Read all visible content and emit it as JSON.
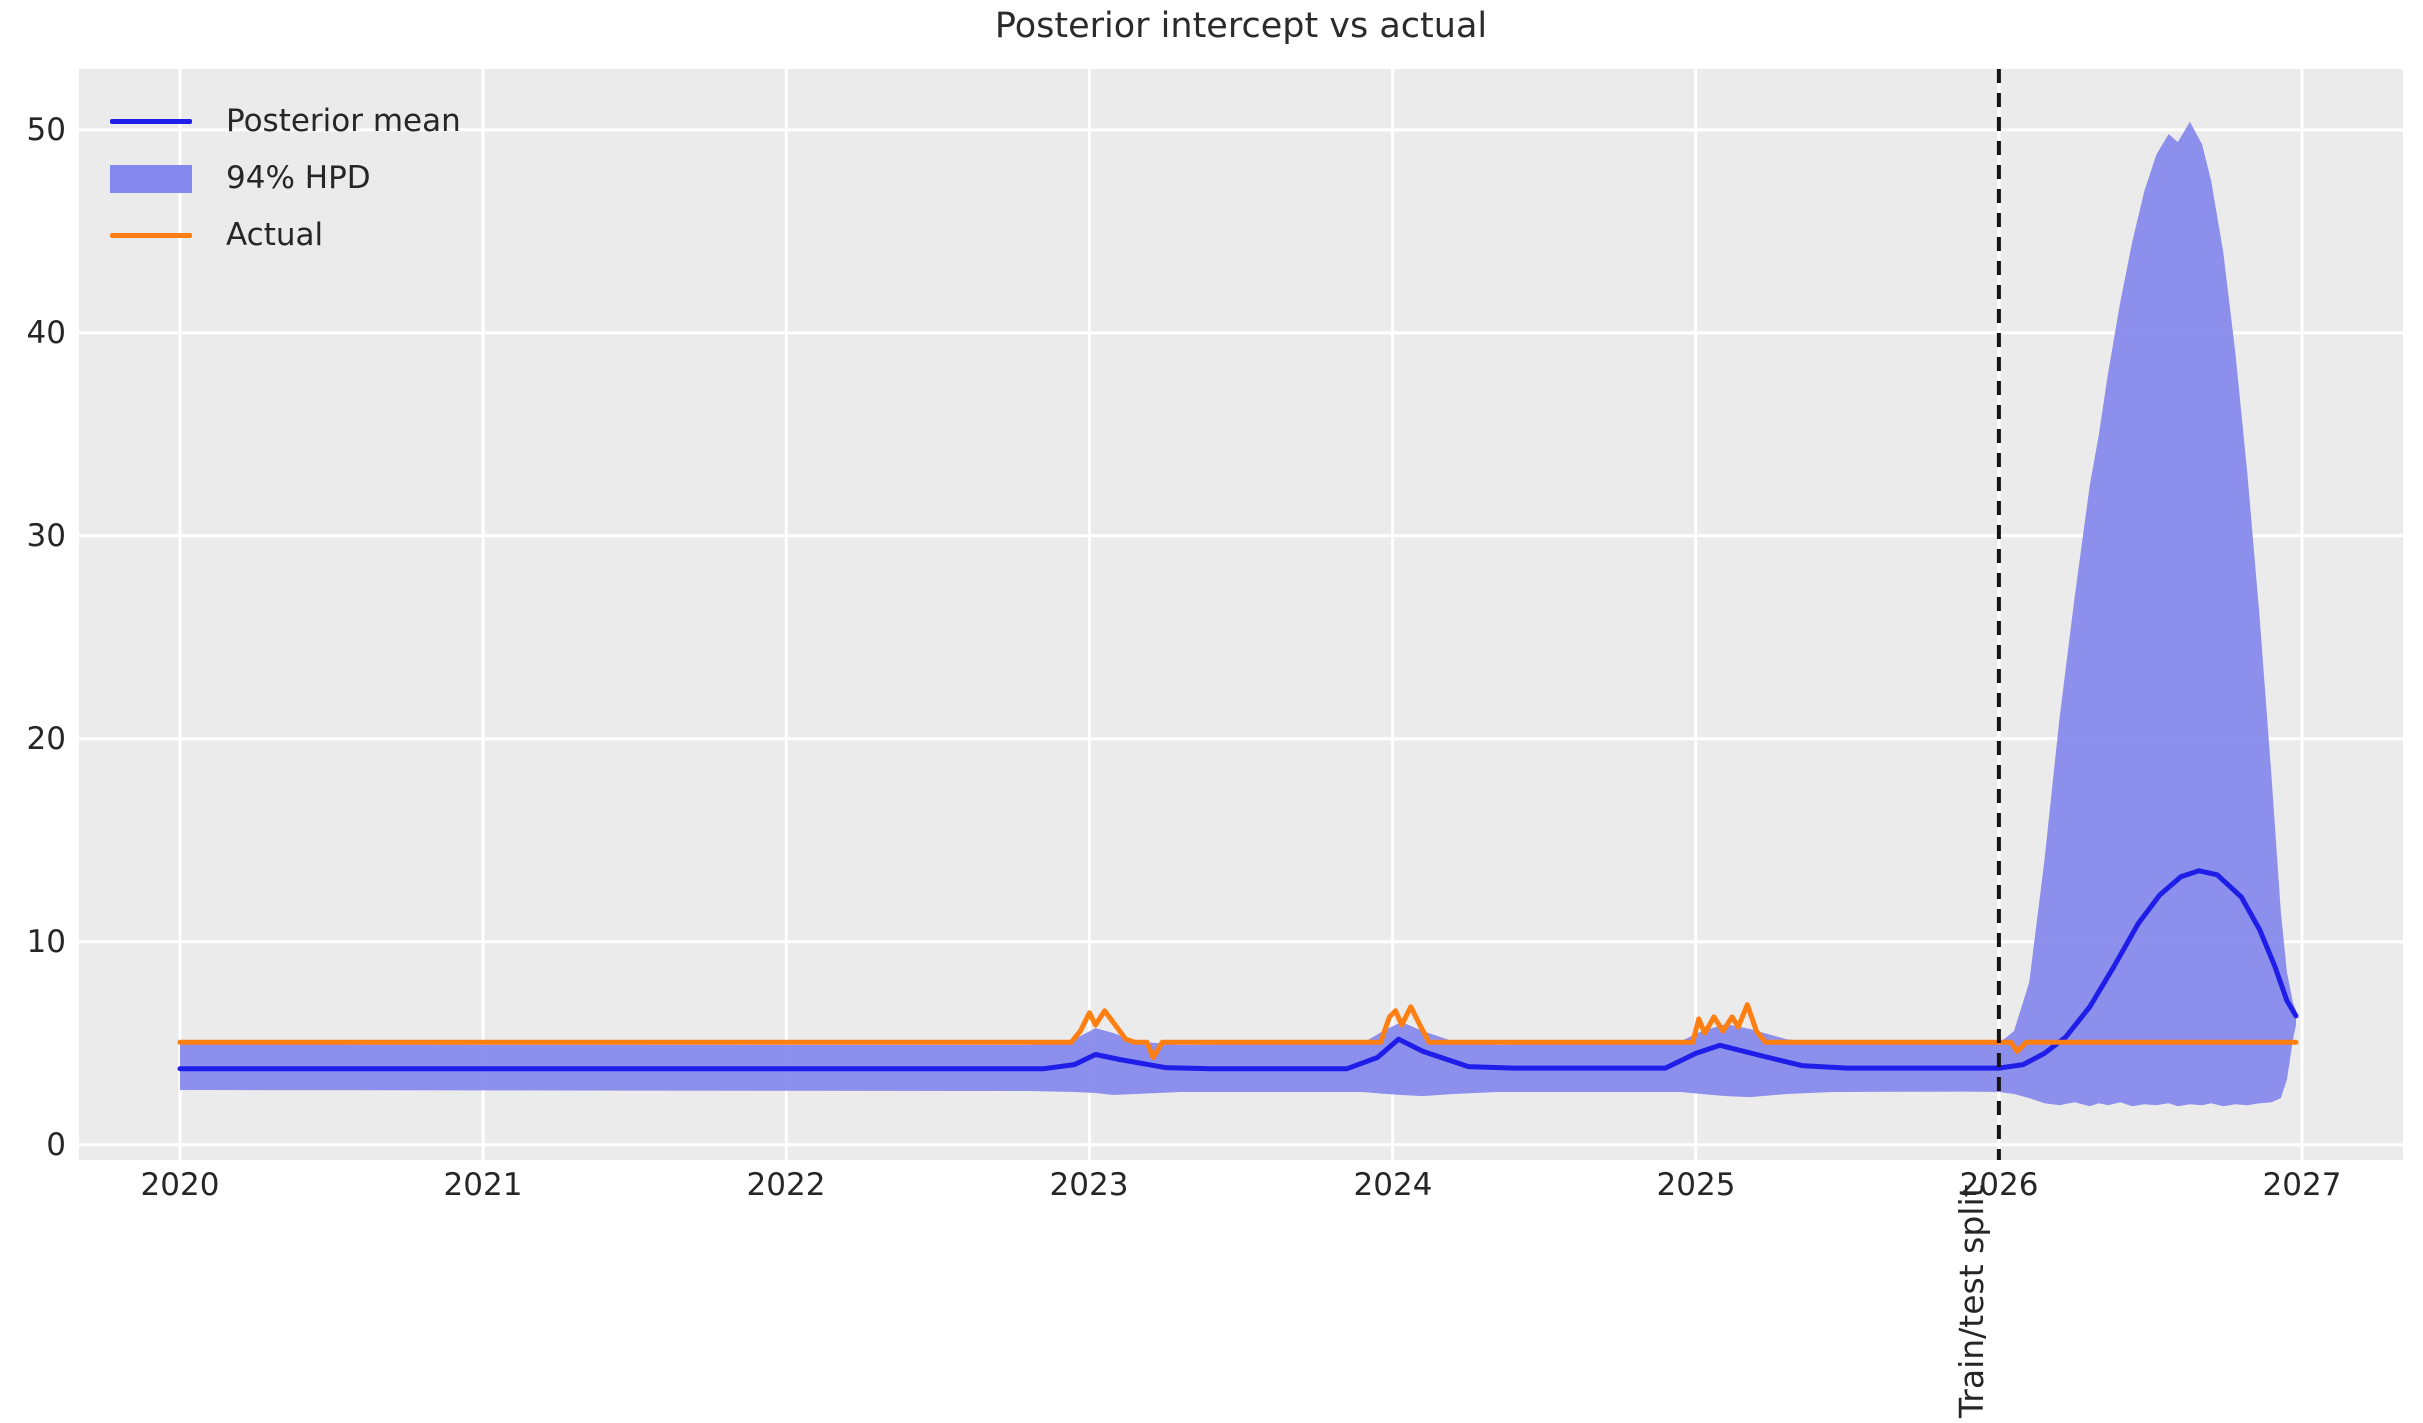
{
  "title": "Posterior intercept vs actual",
  "split_label": "Train/test split",
  "legend": {
    "items": [
      {
        "label": "Posterior mean",
        "type": "line",
        "color": "#1e1ee8"
      },
      {
        "label": "94% HPD",
        "type": "patch",
        "color": "#8487ec"
      },
      {
        "label": "Actual",
        "type": "line",
        "color": "#ff7f12"
      }
    ]
  },
  "colors": {
    "plot_background": "#ebebeb",
    "grid": "#ffffff",
    "posterior_mean": "#1e1ee8",
    "hpd_band": "#8487ec",
    "actual": "#ff7f12",
    "split_line": "#141414",
    "text": "#262626"
  },
  "chart_data": {
    "type": "line",
    "title": "Posterior intercept vs actual",
    "xlabel": "",
    "ylabel": "",
    "grid": true,
    "legend_position": "upper left",
    "x_ticks": [
      2020,
      2021,
      2022,
      2023,
      2024,
      2025,
      2026,
      2027
    ],
    "y_ticks": [
      0,
      10,
      20,
      30,
      40,
      50
    ],
    "xlim": [
      2019.667,
      2027.333
    ],
    "ylim": [
      -0.75,
      53.0
    ],
    "split_x": 2026.0,
    "series": [
      {
        "name": "Posterior mean",
        "color": "#1e1ee8",
        "width": 5,
        "points": [
          [
            2020.0,
            3.75
          ],
          [
            2021.0,
            3.75
          ],
          [
            2022.0,
            3.75
          ],
          [
            2022.85,
            3.75
          ],
          [
            2022.95,
            3.95
          ],
          [
            2023.02,
            4.45
          ],
          [
            2023.1,
            4.2
          ],
          [
            2023.25,
            3.8
          ],
          [
            2023.4,
            3.75
          ],
          [
            2023.85,
            3.75
          ],
          [
            2023.95,
            4.3
          ],
          [
            2024.02,
            5.2
          ],
          [
            2024.1,
            4.6
          ],
          [
            2024.25,
            3.85
          ],
          [
            2024.4,
            3.78
          ],
          [
            2024.9,
            3.78
          ],
          [
            2025.0,
            4.5
          ],
          [
            2025.08,
            4.9
          ],
          [
            2025.2,
            4.45
          ],
          [
            2025.35,
            3.9
          ],
          [
            2025.5,
            3.78
          ],
          [
            2026.0,
            3.78
          ],
          [
            2026.08,
            3.95
          ],
          [
            2026.15,
            4.5
          ],
          [
            2026.22,
            5.3
          ],
          [
            2026.3,
            6.8
          ],
          [
            2026.38,
            8.8
          ],
          [
            2026.46,
            10.9
          ],
          [
            2026.53,
            12.3
          ],
          [
            2026.6,
            13.2
          ],
          [
            2026.66,
            13.5
          ],
          [
            2026.72,
            13.3
          ],
          [
            2026.8,
            12.2
          ],
          [
            2026.86,
            10.6
          ],
          [
            2026.91,
            8.8
          ],
          [
            2026.95,
            7.1
          ],
          [
            2026.98,
            6.35
          ]
        ]
      },
      {
        "name": "Actual",
        "color": "#ff7f12",
        "width": 5,
        "points": [
          [
            2020.0,
            5.05
          ],
          [
            2021.0,
            5.05
          ],
          [
            2022.0,
            5.05
          ],
          [
            2022.94,
            5.05
          ],
          [
            2022.97,
            5.6
          ],
          [
            2023.0,
            6.5
          ],
          [
            2023.02,
            5.9
          ],
          [
            2023.05,
            6.6
          ],
          [
            2023.08,
            6.0
          ],
          [
            2023.12,
            5.2
          ],
          [
            2023.15,
            5.05
          ],
          [
            2023.19,
            5.05
          ],
          [
            2023.21,
            4.3
          ],
          [
            2023.24,
            5.05
          ],
          [
            2023.96,
            5.05
          ],
          [
            2023.99,
            6.3
          ],
          [
            2024.01,
            6.6
          ],
          [
            2024.03,
            5.9
          ],
          [
            2024.06,
            6.8
          ],
          [
            2024.09,
            5.9
          ],
          [
            2024.12,
            5.05
          ],
          [
            2024.99,
            5.05
          ],
          [
            2025.01,
            6.2
          ],
          [
            2025.03,
            5.5
          ],
          [
            2025.06,
            6.3
          ],
          [
            2025.09,
            5.6
          ],
          [
            2025.12,
            6.3
          ],
          [
            2025.14,
            5.8
          ],
          [
            2025.17,
            6.9
          ],
          [
            2025.2,
            5.6
          ],
          [
            2025.23,
            5.05
          ],
          [
            2026.04,
            5.05
          ],
          [
            2026.06,
            4.6
          ],
          [
            2026.09,
            5.05
          ],
          [
            2026.5,
            5.05
          ],
          [
            2026.98,
            5.05
          ]
        ]
      }
    ],
    "band": {
      "name": "94% HPD",
      "color": "#8487ec",
      "points": [
        [
          2020.0,
          2.7,
          4.95
        ],
        [
          2021.0,
          2.68,
          4.93
        ],
        [
          2022.0,
          2.66,
          4.92
        ],
        [
          2022.8,
          2.65,
          4.92
        ],
        [
          2022.95,
          2.6,
          5.2
        ],
        [
          2023.02,
          2.55,
          5.75
        ],
        [
          2023.08,
          2.45,
          5.5
        ],
        [
          2023.15,
          2.5,
          5.1
        ],
        [
          2023.3,
          2.6,
          4.92
        ],
        [
          2023.9,
          2.6,
          5.0
        ],
        [
          2023.98,
          2.5,
          5.7
        ],
        [
          2024.03,
          2.45,
          6.05
        ],
        [
          2024.1,
          2.4,
          5.6
        ],
        [
          2024.2,
          2.5,
          5.1
        ],
        [
          2024.35,
          2.6,
          4.92
        ],
        [
          2024.95,
          2.6,
          5.1
        ],
        [
          2025.02,
          2.5,
          5.6
        ],
        [
          2025.1,
          2.4,
          5.95
        ],
        [
          2025.18,
          2.35,
          5.7
        ],
        [
          2025.3,
          2.5,
          5.2
        ],
        [
          2025.45,
          2.6,
          4.95
        ],
        [
          2025.9,
          2.62,
          4.95
        ],
        [
          2026.0,
          2.6,
          5.0
        ],
        [
          2026.05,
          2.5,
          5.6
        ],
        [
          2026.1,
          2.3,
          8.0
        ],
        [
          2026.15,
          2.05,
          14.0
        ],
        [
          2026.2,
          1.95,
          21.0
        ],
        [
          2026.25,
          2.1,
          27.0
        ],
        [
          2026.3,
          1.9,
          32.5
        ],
        [
          2026.33,
          2.05,
          35.0
        ],
        [
          2026.36,
          1.95,
          38.0
        ],
        [
          2026.4,
          2.1,
          41.5
        ],
        [
          2026.44,
          1.9,
          44.5
        ],
        [
          2026.48,
          2.0,
          47.0
        ],
        [
          2026.52,
          1.95,
          48.8
        ],
        [
          2026.56,
          2.05,
          49.8
        ],
        [
          2026.59,
          1.9,
          49.4
        ],
        [
          2026.63,
          2.0,
          50.4
        ],
        [
          2026.67,
          1.95,
          49.3
        ],
        [
          2026.7,
          2.05,
          47.5
        ],
        [
          2026.74,
          1.9,
          44.0
        ],
        [
          2026.78,
          2.0,
          39.0
        ],
        [
          2026.82,
          1.95,
          33.0
        ],
        [
          2026.86,
          2.05,
          26.0
        ],
        [
          2026.9,
          2.1,
          18.0
        ],
        [
          2026.93,
          2.3,
          11.5
        ],
        [
          2026.95,
          3.2,
          8.5
        ],
        [
          2026.97,
          5.2,
          7.0
        ],
        [
          2026.98,
          5.9,
          6.6
        ]
      ]
    }
  }
}
